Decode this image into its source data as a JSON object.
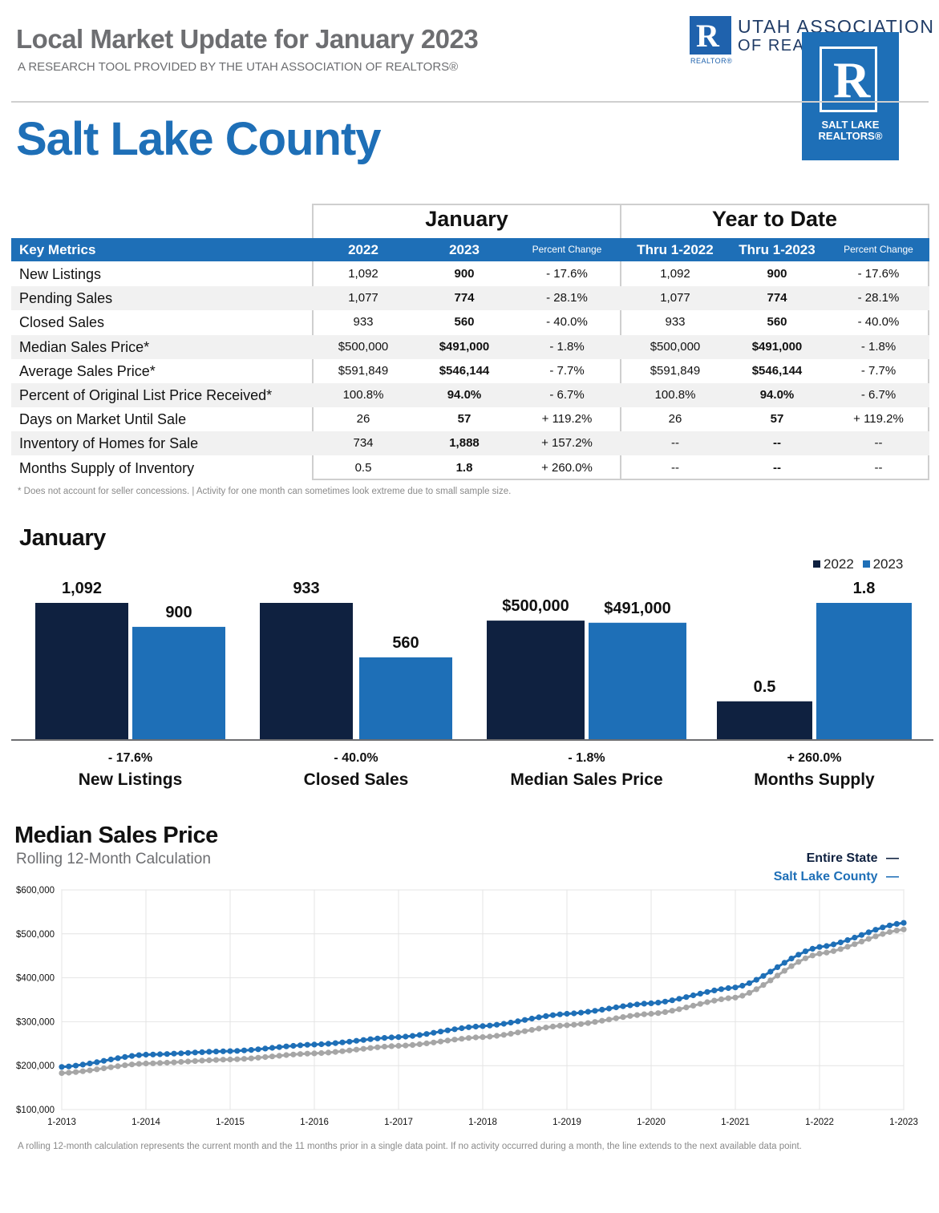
{
  "header": {
    "title": "Local Market Update for January 2023",
    "subtitle": "A RESEARCH TOOL PROVIDED BY THE UTAH ASSOCIATION OF REALTORS®",
    "county": "Salt Lake County"
  },
  "logos": {
    "ua_mark": "R",
    "ua_realtor": "REALTOR®",
    "ua_line1": "UTAH ASSOCIATION",
    "ua_line2": "OF REALTORS®",
    "slr_mark": "R",
    "slr_line1": "SALT LAKE",
    "slr_line2": "REALTORS®"
  },
  "table": {
    "group_month": "January",
    "group_ytd": "Year to Date",
    "headers": [
      "Key Metrics",
      "2022",
      "2023",
      "Percent Change",
      "Thru 1-2022",
      "Thru 1-2023",
      "Percent Change"
    ],
    "rows": [
      {
        "metric": "New Listings",
        "v2022": "1,092",
        "v2023": "900",
        "pct": "- 17.6%",
        "ytd2022": "1,092",
        "ytd2023": "900",
        "ytdpct": "- 17.6%"
      },
      {
        "metric": "Pending Sales",
        "v2022": "1,077",
        "v2023": "774",
        "pct": "- 28.1%",
        "ytd2022": "1,077",
        "ytd2023": "774",
        "ytdpct": "- 28.1%"
      },
      {
        "metric": "Closed Sales",
        "v2022": "933",
        "v2023": "560",
        "pct": "- 40.0%",
        "ytd2022": "933",
        "ytd2023": "560",
        "ytdpct": "- 40.0%"
      },
      {
        "metric": "Median Sales Price*",
        "v2022": "$500,000",
        "v2023": "$491,000",
        "pct": "- 1.8%",
        "ytd2022": "$500,000",
        "ytd2023": "$491,000",
        "ytdpct": "- 1.8%"
      },
      {
        "metric": "Average Sales Price*",
        "v2022": "$591,849",
        "v2023": "$546,144",
        "pct": "- 7.7%",
        "ytd2022": "$591,849",
        "ytd2023": "$546,144",
        "ytdpct": "- 7.7%"
      },
      {
        "metric": "Percent of Original List Price Received*",
        "v2022": "100.8%",
        "v2023": "94.0%",
        "pct": "- 6.7%",
        "ytd2022": "100.8%",
        "ytd2023": "94.0%",
        "ytdpct": "- 6.7%"
      },
      {
        "metric": "Days on Market Until Sale",
        "v2022": "26",
        "v2023": "57",
        "pct": "+ 119.2%",
        "ytd2022": "26",
        "ytd2023": "57",
        "ytdpct": "+ 119.2%"
      },
      {
        "metric": "Inventory of Homes for Sale",
        "v2022": "734",
        "v2023": "1,888",
        "pct": "+ 157.2%",
        "ytd2022": "--",
        "ytd2023": "--",
        "ytdpct": "--"
      },
      {
        "metric": "Months Supply of Inventory",
        "v2022": "0.5",
        "v2023": "1.8",
        "pct": "+ 260.0%",
        "ytd2022": "--",
        "ytd2023": "--",
        "ytdpct": "--"
      }
    ],
    "footnote": "* Does not account for seller concessions.  |  Activity for one month can sometimes look extreme due to small sample size."
  },
  "colors": {
    "navy": "#0f2140",
    "blue": "#1e6fb7",
    "gray_line": "#a6a6a6",
    "blue_line": "#1e6fb7"
  },
  "chart_data": [
    {
      "type": "bar",
      "title": "January",
      "legend": [
        "2022",
        "2023"
      ],
      "groups": [
        {
          "name": "New Listings",
          "change": "- 17.6%",
          "values": [
            1092,
            900
          ],
          "labels": [
            "1,092",
            "900"
          ]
        },
        {
          "name": "Closed Sales",
          "change": "- 40.0%",
          "values": [
            933,
            560
          ],
          "labels": [
            "933",
            "560"
          ]
        },
        {
          "name": "Median Sales Price",
          "change": "- 1.8%",
          "values": [
            500000,
            491000
          ],
          "labels": [
            "$500,000",
            "$491,000"
          ]
        },
        {
          "name": "Months Supply",
          "change": "+ 260.0%",
          "values": [
            0.5,
            1.8
          ],
          "labels": [
            "0.5",
            "1.8"
          ]
        }
      ]
    },
    {
      "type": "line",
      "title": "Median Sales Price",
      "subtitle": "Rolling 12-Month Calculation",
      "x_ticks": [
        "1-2013",
        "1-2014",
        "1-2015",
        "1-2016",
        "1-2017",
        "1-2018",
        "1-2019",
        "1-2020",
        "1-2021",
        "1-2022",
        "1-2023"
      ],
      "y_ticks": [
        "$100,000",
        "$200,000",
        "$300,000",
        "$400,000",
        "$500,000",
        "$600,000"
      ],
      "ylim": [
        100000,
        600000
      ],
      "series": [
        {
          "name": "Entire State",
          "values": [
            183000,
            205000,
            214000,
            228000,
            245000,
            265000,
            292000,
            318000,
            355000,
            455000,
            510000
          ]
        },
        {
          "name": "Salt Lake County",
          "values": [
            197000,
            225000,
            233000,
            248000,
            265000,
            290000,
            318000,
            342000,
            378000,
            470000,
            525000
          ]
        }
      ],
      "legend_state": "Entire State",
      "legend_county": "Salt Lake County",
      "legend_dash": "—"
    }
  ],
  "line_note": "A rolling 12-month calculation represents the current month and the 11 months prior in a single data point. If no activity occurred during a month, the line extends to the next available data point."
}
